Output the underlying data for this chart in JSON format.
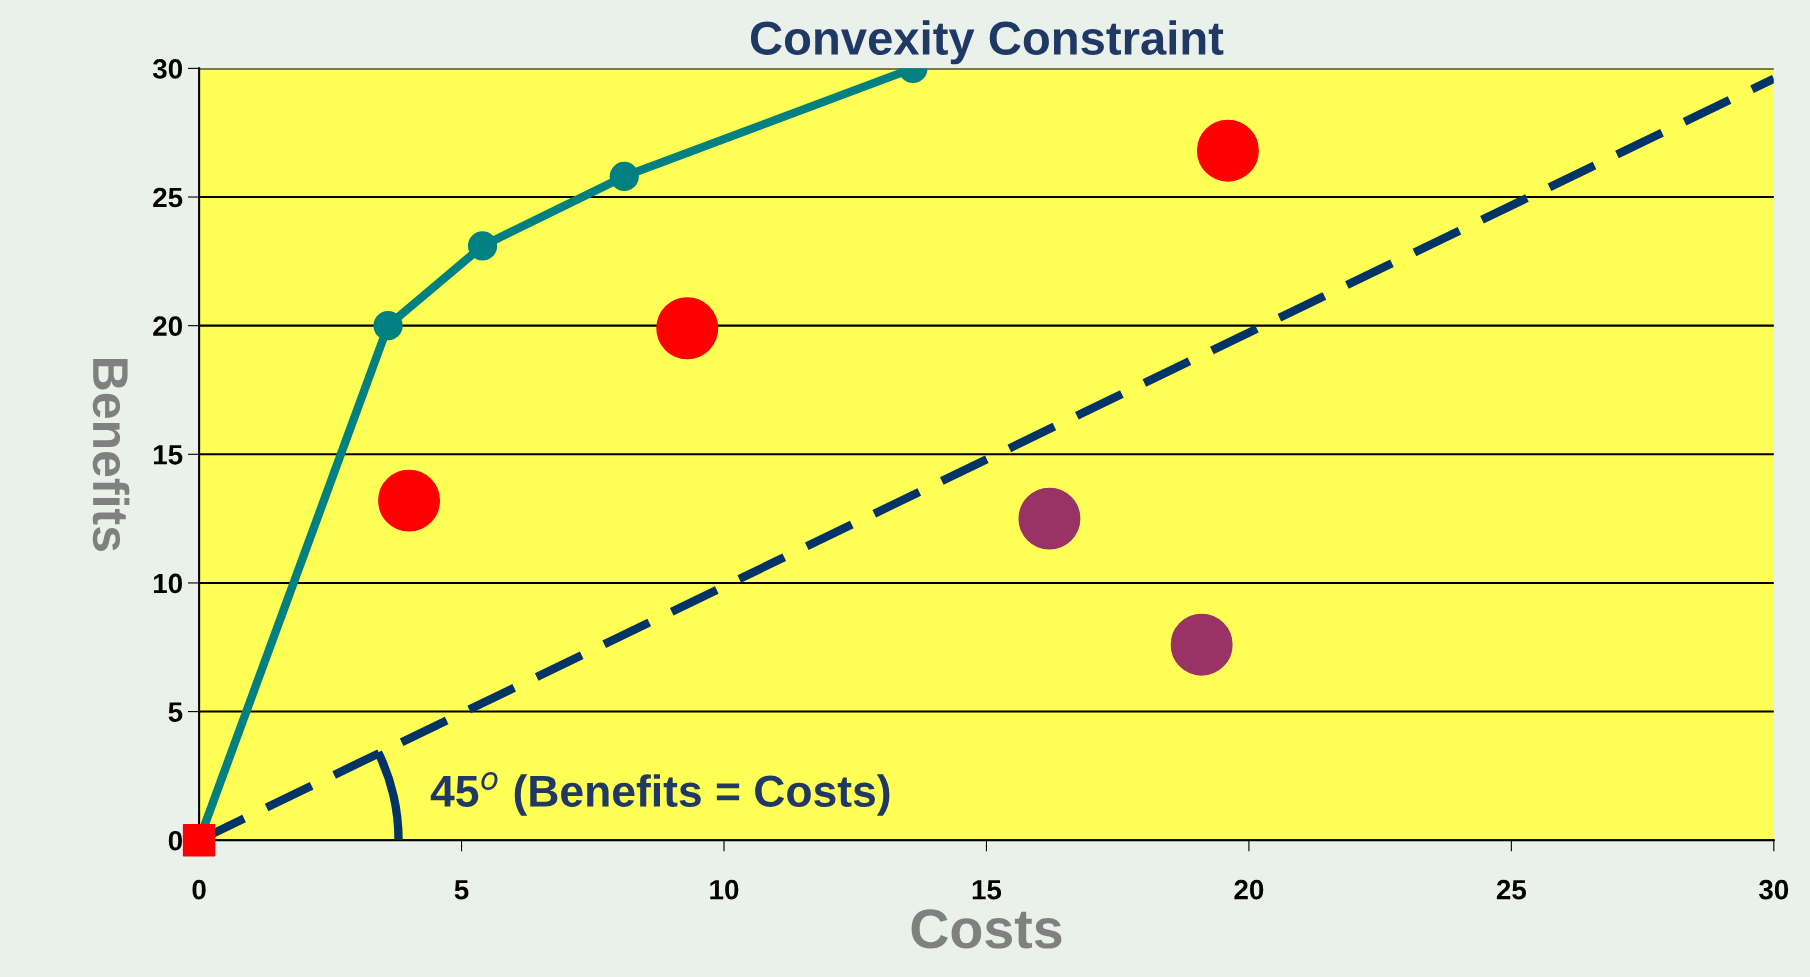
{
  "chart_data": {
    "type": "scatter",
    "title": "Convexity Constraint",
    "xlabel": "Costs",
    "ylabel": "Benefits",
    "xlim": [
      0,
      30
    ],
    "ylim": [
      0,
      30
    ],
    "xticks": [
      0,
      5,
      10,
      15,
      20,
      25,
      30
    ],
    "yticks": [
      0,
      5,
      10,
      15,
      20,
      25,
      30
    ],
    "grid": "y",
    "legend": false,
    "series": [
      {
        "type": "line",
        "color": "#003366",
        "line_style": "dashed",
        "marker": "none",
        "x": [
          0,
          30
        ],
        "values": [
          0,
          29.6
        ]
      },
      {
        "type": "line",
        "color": "#008080",
        "line_style": "solid",
        "marker": "circle",
        "x": [
          0,
          3.6,
          5.4,
          8.1,
          13.6
        ],
        "values": [
          0,
          20,
          23.1,
          25.8,
          30
        ]
      },
      {
        "color": "#ff0000",
        "marker": "circle",
        "x": [
          4,
          9.3,
          19.6
        ],
        "values": [
          13.2,
          19.9,
          26.8
        ]
      },
      {
        "color": "#993366",
        "marker": "circle",
        "x": [
          16.2,
          19.1
        ],
        "values": [
          12.5,
          7.6
        ]
      },
      {
        "color": "#ff0000",
        "marker": "square",
        "x": [
          0
        ],
        "values": [
          0
        ]
      }
    ],
    "annotations": [
      "45$^{o}$ (Benefits = Costs)"
    ]
  }
}
